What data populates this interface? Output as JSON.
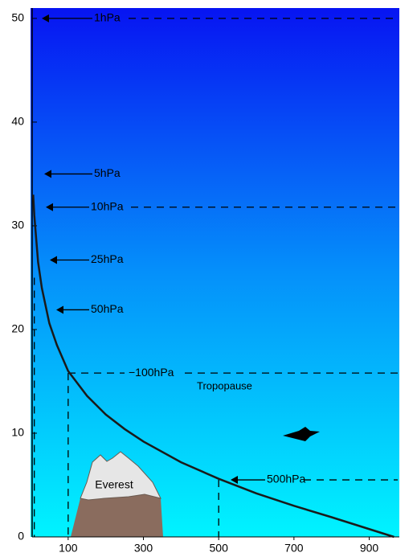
{
  "chart_data": {
    "type": "line",
    "x": [
      966,
      800,
      700,
      600,
      500,
      400,
      300,
      250,
      200,
      150,
      100,
      70,
      50,
      30,
      20,
      10,
      7
    ],
    "values": [
      0,
      1.9,
      3,
      4.2,
      5.6,
      7.2,
      9.2,
      10.4,
      11.8,
      13.6,
      16,
      18.5,
      20.6,
      24,
      26.5,
      31,
      33
    ],
    "color": "#1a1a1a",
    "xlim": [
      0,
      980
    ],
    "xticks": [
      100,
      300,
      500,
      700,
      900
    ],
    "ylim": [
      0,
      51
    ],
    "yticks": [
      0,
      10,
      20,
      30,
      40,
      50
    ],
    "levels": [
      {
        "label": "1hPa",
        "altitude": 50
      },
      {
        "label": "5hPa",
        "altitude": 35
      },
      {
        "label": "10hPa",
        "altitude": 31.8,
        "pressure": 10
      },
      {
        "label": "25hPa",
        "altitude": 26.7
      },
      {
        "label": "50hPa",
        "altitude": 21.9
      },
      {
        "label": "−100hPa",
        "altitude": 15.8,
        "pressure": 100
      },
      {
        "label": "500hPa",
        "altitude": 5.5,
        "pressure": 500
      }
    ],
    "annotations": [
      "Tropopause",
      "Everest"
    ]
  }
}
